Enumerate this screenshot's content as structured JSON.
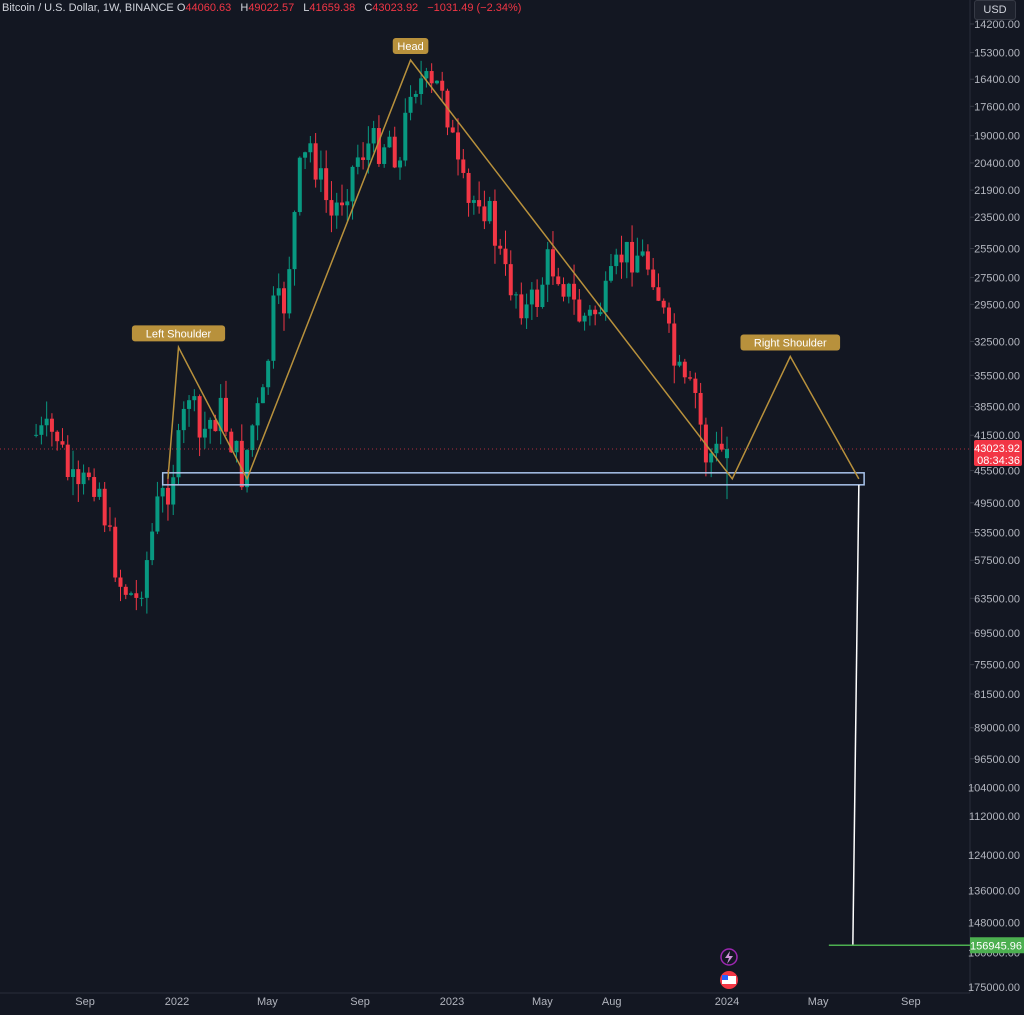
{
  "header": {
    "symbol": "Bitcoin / U.S. Dollar, 1W, BINANCE",
    "open_key": "O",
    "open": "44060.63",
    "high_key": "H",
    "high": "49022.57",
    "low_key": "L",
    "low": "41659.38",
    "close_key": "C",
    "close": "43023.92",
    "change": "−1031.49 (−2.34%)"
  },
  "currency": "USD",
  "colors": {
    "background": "#131722",
    "up": "#089981",
    "down": "#f23645",
    "pattern": "#b8913c",
    "neckline_box": "#a9c4ec",
    "target": "#4caf50"
  },
  "price_axis": {
    "ticks": [
      "14200.00",
      "15300.00",
      "16400.00",
      "17600.00",
      "19000.00",
      "20400.00",
      "21900.00",
      "23500.00",
      "25500.00",
      "27500.00",
      "29500.00",
      "32500.00",
      "35500.00",
      "38500.00",
      "41500.00",
      "45500.00",
      "49500.00",
      "53500.00",
      "57500.00",
      "63500.00",
      "69500.00",
      "75500.00",
      "81500.00",
      "89000.00",
      "96500.00",
      "104000.00",
      "112000.00",
      "124000.00",
      "136000.00",
      "148000.00",
      "160000.00",
      "175000.00"
    ],
    "current_price": "43023.92",
    "countdown": "08:34:36",
    "target_price": "156945.96",
    "inverted": true
  },
  "time_axis": {
    "ticks": [
      "Sep",
      "2022",
      "May",
      "Sep",
      "2023",
      "May",
      "Aug",
      "2024",
      "May",
      "Sep"
    ]
  },
  "annotations": {
    "head": "Head",
    "left_shoulder": "Left Shoulder",
    "right_shoulder": "Right Shoulder"
  },
  "chart_data": {
    "type": "candlestick",
    "title": "Bitcoin / U.S. Dollar, 1W, BINANCE",
    "y_scale": "log, inverted",
    "ylim": [
      14200,
      175000
    ],
    "xlim": [
      "2021-07",
      "2024-10"
    ],
    "series": [
      {
        "kind": "weekly_close_approx",
        "points": [
          [
            "2021-07-26",
            41500
          ],
          [
            "2021-08-09",
            46000
          ],
          [
            "2021-08-23",
            49000
          ],
          [
            "2021-09-06",
            45500
          ],
          [
            "2021-09-20",
            47500
          ],
          [
            "2021-10-04",
            55000
          ],
          [
            "2021-10-18",
            61000
          ],
          [
            "2021-11-08",
            64000
          ],
          [
            "2021-11-22",
            57500
          ],
          [
            "2021-12-06",
            50000
          ],
          [
            "2021-12-20",
            47500
          ],
          [
            "2022-01-03",
            43000
          ],
          [
            "2022-01-17",
            37000
          ],
          [
            "2022-01-31",
            42000
          ],
          [
            "2022-02-14",
            40000
          ],
          [
            "2022-02-28",
            39000
          ],
          [
            "2022-03-14",
            42000
          ],
          [
            "2022-03-28",
            46000
          ],
          [
            "2022-04-11",
            40500
          ],
          [
            "2022-04-25",
            38000
          ],
          [
            "2022-05-09",
            30000
          ],
          [
            "2022-05-23",
            29500
          ],
          [
            "2022-06-13",
            21000
          ],
          [
            "2022-06-27",
            19500
          ],
          [
            "2022-07-11",
            21500
          ],
          [
            "2022-07-25",
            23500
          ],
          [
            "2022-08-15",
            21500
          ],
          [
            "2022-08-29",
            20000
          ],
          [
            "2022-09-12",
            19500
          ],
          [
            "2022-09-26",
            19500
          ],
          [
            "2022-10-10",
            19000
          ],
          [
            "2022-10-24",
            20500
          ],
          [
            "2022-11-07",
            16500
          ],
          [
            "2022-11-21",
            16500
          ],
          [
            "2022-12-05",
            17000
          ],
          [
            "2022-12-19",
            16500
          ],
          [
            "2023-01-09",
            21000
          ],
          [
            "2023-01-23",
            23000
          ],
          [
            "2023-02-06",
            22000
          ],
          [
            "2023-02-20",
            23500
          ],
          [
            "2023-03-13",
            27500
          ],
          [
            "2023-03-27",
            28500
          ],
          [
            "2023-04-10",
            30000
          ],
          [
            "2023-04-24",
            29000
          ],
          [
            "2023-05-08",
            26500
          ],
          [
            "2023-05-22",
            27000
          ],
          [
            "2023-06-19",
            30500
          ],
          [
            "2023-07-03",
            30500
          ],
          [
            "2023-07-24",
            29200
          ],
          [
            "2023-08-14",
            26000
          ],
          [
            "2023-09-04",
            25800
          ],
          [
            "2023-09-25",
            27000
          ],
          [
            "2023-10-23",
            34500
          ],
          [
            "2023-11-06",
            37000
          ],
          [
            "2023-11-20",
            37500
          ],
          [
            "2023-12-04",
            43800
          ],
          [
            "2023-12-18",
            43500
          ],
          [
            "2024-01-01",
            43023.92
          ]
        ]
      }
    ],
    "pattern": {
      "name": "Head and Shoulders (inverted scale)",
      "neckline": 46500,
      "target": 156945.96,
      "points": [
        [
          "2021-12-20",
          46500
        ],
        [
          "2022-01-03",
          33000
        ],
        [
          "2022-04-04",
          46500
        ],
        [
          "2022-11-07",
          15600
        ],
        [
          "2024-01-08",
          46500
        ],
        [
          "2024-03-25",
          33800
        ],
        [
          "2024-06-24",
          46500
        ]
      ]
    }
  }
}
